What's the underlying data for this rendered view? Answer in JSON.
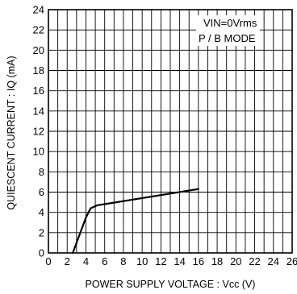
{
  "chart_data": {
    "type": "line",
    "xlabel": "POWER SUPPLY VOLTAGE : Vcc (V)",
    "ylabel": "QUIESCENT CURRENT : IQ (mA)",
    "xlim": [
      0,
      26
    ],
    "ylim": [
      0,
      24
    ],
    "x_ticks": [
      0,
      2,
      4,
      6,
      8,
      10,
      12,
      14,
      16,
      18,
      20,
      22,
      24,
      26
    ],
    "y_ticks": [
      0,
      2,
      4,
      6,
      8,
      10,
      12,
      14,
      16,
      18,
      20,
      22,
      24
    ],
    "x_minor_step": 1,
    "grid": true,
    "annotations": [
      "VIN=0Vrms",
      "P / B MODE"
    ],
    "annotation_placement": "top-right",
    "series": [
      {
        "color": "#000000",
        "x": [
          2.6,
          4.0,
          4.5,
          5.2,
          16.0
        ],
        "y": [
          0.0,
          3.5,
          4.4,
          4.7,
          6.3
        ]
      }
    ]
  }
}
